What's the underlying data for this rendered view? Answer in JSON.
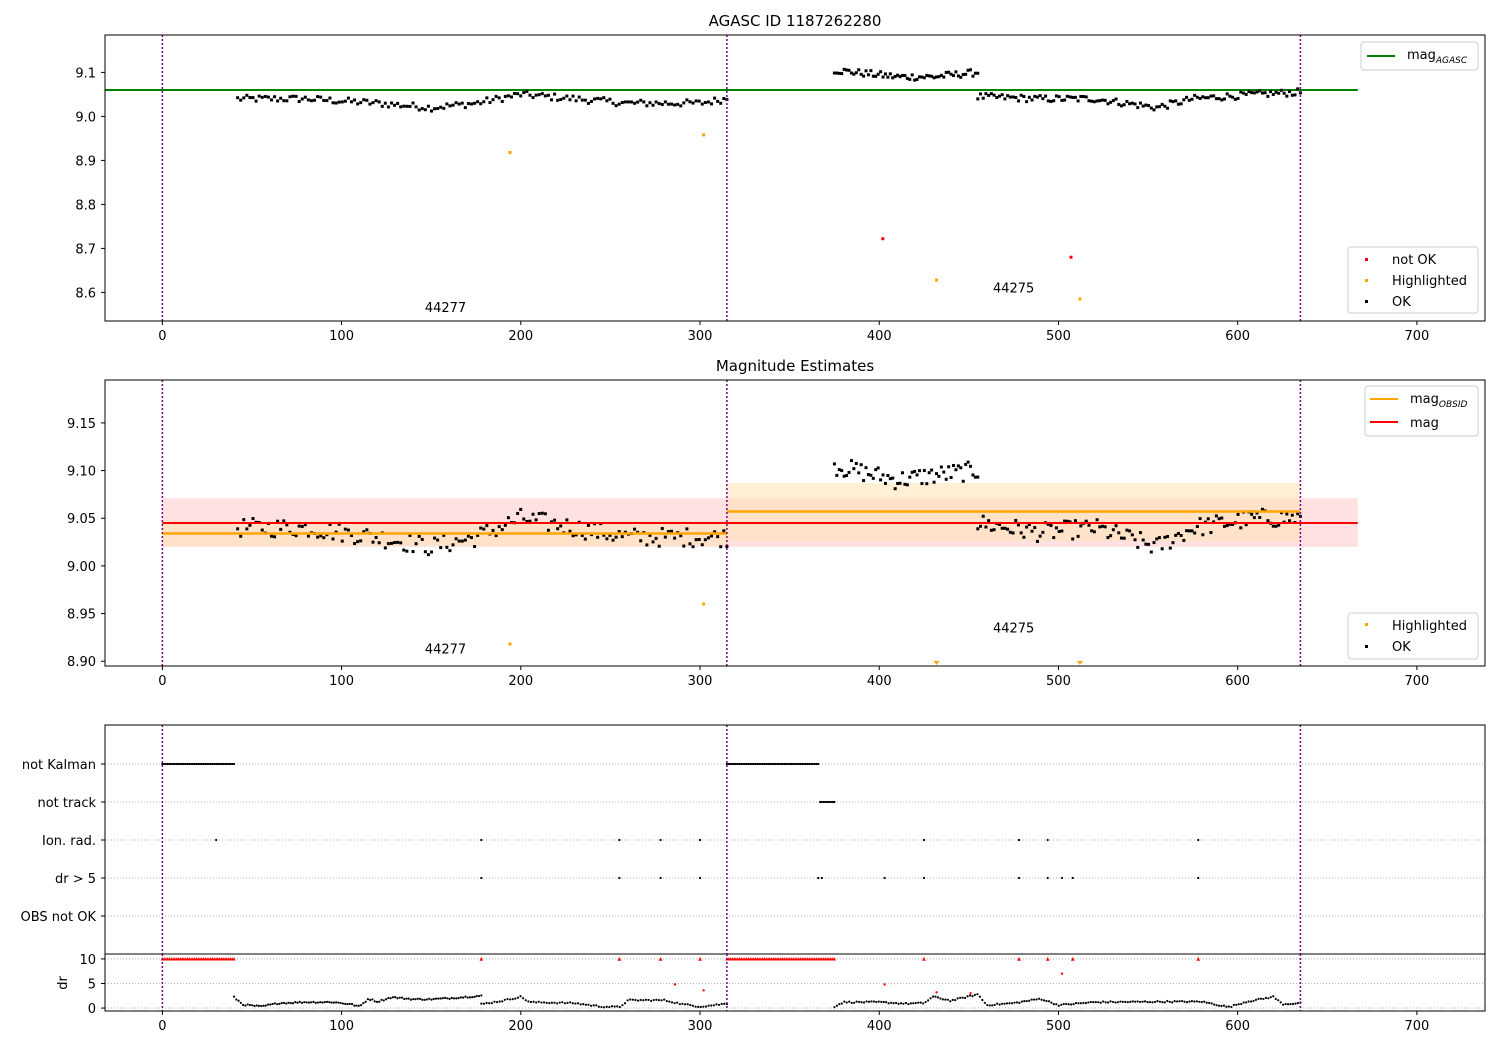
{
  "chart_data": [
    {
      "id": "top",
      "type": "scatter",
      "title": "AGASC ID 1187262280",
      "xlim": [
        -32,
        738
      ],
      "ylim": [
        8.535,
        9.185
      ],
      "xticks": [
        0,
        100,
        200,
        300,
        400,
        500,
        600,
        700
      ],
      "yticks": [
        8.6,
        8.7,
        8.8,
        8.9,
        9.0,
        9.1
      ],
      "yticklabels": [
        "8.6",
        "8.7",
        "8.8",
        "8.9",
        "9.0",
        "9.1"
      ],
      "vlines": [
        0,
        315,
        635
      ],
      "hline": {
        "name": "mag_AGASC",
        "y": 9.06,
        "x": [
          -32,
          667
        ],
        "color": "#008000"
      },
      "obsid_labels": [
        {
          "text": "44277",
          "x": 158,
          "y": 8.555
        },
        {
          "text": "44275",
          "x": 475,
          "y": 8.6
        }
      ],
      "series": [
        {
          "name": "not OK",
          "color": "#ff0000",
          "x": [
            402,
            507
          ],
          "y": [
            8.722,
            8.68
          ]
        },
        {
          "name": "Highlighted",
          "color": "#ffa500",
          "x": [
            194,
            302,
            432,
            512
          ],
          "y": [
            8.918,
            8.958,
            8.628,
            8.585
          ]
        },
        {
          "name": "OK",
          "color": "#000000",
          "segments": [
            {
              "x0": 42,
              "x1": 315,
              "yk": [
                [
                  42,
                  9.04
                ],
                [
                  80,
                  9.04
                ],
                [
                  120,
                  9.03
                ],
                [
                  150,
                  9.02
                ],
                [
                  175,
                  9.03
                ],
                [
                  200,
                  9.05
                ],
                [
                  230,
                  9.04
                ],
                [
                  260,
                  9.03
                ],
                [
                  300,
                  9.03
                ],
                [
                  315,
                  9.04
                ]
              ],
              "n": 160,
              "noise": 0.008
            },
            {
              "x0": 375,
              "x1": 455,
              "yk": [
                [
                  375,
                  9.105
                ],
                [
                  410,
                  9.09
                ],
                [
                  430,
                  9.09
                ],
                [
                  455,
                  9.1
                ]
              ],
              "n": 60,
              "noise": 0.008
            },
            {
              "x0": 455,
              "x1": 635,
              "yk": [
                [
                  455,
                  9.045
                ],
                [
                  490,
                  9.04
                ],
                [
                  520,
                  9.04
                ],
                [
                  555,
                  9.02
                ],
                [
                  575,
                  9.04
                ],
                [
                  610,
                  9.05
                ],
                [
                  635,
                  9.055
                ]
              ],
              "n": 120,
              "noise": 0.008
            }
          ]
        }
      ],
      "legend_upper": [
        "mag_AGASC"
      ],
      "legend_lower": [
        "not OK",
        "Highlighted",
        "OK"
      ]
    },
    {
      "id": "mid",
      "type": "scatter",
      "title": "Magnitude Estimates",
      "xlim": [
        -32,
        738
      ],
      "ylim": [
        8.895,
        9.195
      ],
      "xticks": [
        0,
        100,
        200,
        300,
        400,
        500,
        600,
        700
      ],
      "yticks": [
        8.9,
        8.95,
        9.0,
        9.05,
        9.1,
        9.15
      ],
      "yticklabels": [
        "8.90",
        "8.95",
        "9.00",
        "9.05",
        "9.10",
        "9.15"
      ],
      "vlines": [
        0,
        315,
        635
      ],
      "mag": {
        "y": 9.045,
        "band": [
          9.02,
          9.071
        ],
        "x": [
          0,
          667
        ],
        "color": "#ff0000"
      },
      "mag_obsid": [
        {
          "x": [
            0,
            315
          ],
          "y": 9.034,
          "band": [
            9.021,
            9.047
          ]
        },
        {
          "x": [
            315,
            635
          ],
          "y": 9.057,
          "band": [
            9.026,
            9.087
          ]
        }
      ],
      "obsid_labels": [
        {
          "text": "44277",
          "x": 158,
          "y": 8.908
        },
        {
          "text": "44275",
          "x": 475,
          "y": 8.93
        }
      ],
      "series": [
        {
          "name": "Highlighted",
          "color": "#ffa500",
          "x": [
            194,
            302
          ],
          "y": [
            8.918,
            8.96
          ],
          "off_axis_x": [
            432,
            512
          ]
        },
        {
          "name": "OK",
          "color": "#000000",
          "segments": [
            {
              "x0": 42,
              "x1": 315,
              "yk": [
                [
                  42,
                  9.04
                ],
                [
                  80,
                  9.04
                ],
                [
                  120,
                  9.03
                ],
                [
                  150,
                  9.02
                ],
                [
                  175,
                  9.03
                ],
                [
                  200,
                  9.05
                ],
                [
                  230,
                  9.04
                ],
                [
                  260,
                  9.03
                ],
                [
                  300,
                  9.03
                ],
                [
                  315,
                  9.03
                ]
              ],
              "n": 160,
              "noise": 0.01
            },
            {
              "x0": 375,
              "x1": 455,
              "yk": [
                [
                  375,
                  9.105
                ],
                [
                  410,
                  9.09
                ],
                [
                  430,
                  9.095
                ],
                [
                  455,
                  9.1
                ]
              ],
              "n": 60,
              "noise": 0.01
            },
            {
              "x0": 455,
              "x1": 635,
              "yk": [
                [
                  455,
                  9.045
                ],
                [
                  490,
                  9.035
                ],
                [
                  520,
                  9.04
                ],
                [
                  555,
                  9.02
                ],
                [
                  575,
                  9.04
                ],
                [
                  610,
                  9.05
                ],
                [
                  635,
                  9.05
                ]
              ],
              "n": 120,
              "noise": 0.01
            }
          ]
        }
      ],
      "legend_upper": [
        "mag_OBSID",
        "mag"
      ],
      "legend_lower": [
        "Highlighted",
        "OK"
      ]
    },
    {
      "id": "flags",
      "type": "scatter",
      "xlim": [
        -32,
        738
      ],
      "categories": [
        "not Kalman",
        "not track",
        "Ion. rad.",
        "dr > 5",
        "OBS not OK"
      ],
      "vlines": [
        0,
        315,
        635
      ],
      "flags": {
        "not Kalman": {
          "ranges": [
            [
              0,
              40
            ],
            [
              315,
              366
            ]
          ]
        },
        "not track": {
          "ranges": [
            [
              367,
              375
            ]
          ]
        },
        "Ion. rad.": {
          "points": [
            30,
            178,
            255,
            278,
            300,
            425,
            478,
            494,
            578
          ]
        },
        "dr > 5": {
          "points": [
            178,
            255,
            278,
            300,
            366,
            368,
            403,
            425,
            478,
            494,
            502,
            508,
            578
          ]
        },
        "OBS not OK": {
          "points": []
        }
      }
    },
    {
      "id": "dr",
      "type": "scatter",
      "ylabel": "dr",
      "xlim": [
        -32,
        738
      ],
      "ylim": [
        -0.6,
        11.0
      ],
      "xticks": [
        0,
        100,
        200,
        300,
        400,
        500,
        600,
        700
      ],
      "xticklabels": [
        "0",
        "100",
        "200",
        "300",
        "400",
        "500",
        "600",
        "700"
      ],
      "yticks": [
        0,
        5,
        10
      ],
      "yticklabels": [
        "0",
        "5",
        "10"
      ],
      "vlines": [
        0,
        315,
        635
      ],
      "clipped_red": {
        "ranges": [
          [
            0,
            40
          ],
          [
            315,
            375
          ]
        ],
        "points": [
          178,
          255,
          278,
          300,
          425,
          478,
          494,
          508,
          578
        ],
        "y": 10
      },
      "red_points": {
        "x": [
          286,
          403,
          432,
          502,
          302,
          451
        ],
        "y": [
          4.8,
          4.8,
          3.2,
          7.0,
          3.6,
          3.0
        ]
      },
      "series": [
        {
          "name": "dr",
          "color": "#000000",
          "segments": [
            {
              "x0": 40,
              "x1": 178,
              "yk": [
                [
                  40,
                  2.2
                ],
                [
                  45,
                  0.7
                ],
                [
                  55,
                  0.3
                ],
                [
                  65,
                  1.0
                ],
                [
                  80,
                  1.2
                ],
                [
                  95,
                  1.2
                ],
                [
                  105,
                  0.8
                ],
                [
                  110,
                  0.3
                ],
                [
                  115,
                  1.9
                ],
                [
                  120,
                  1.3
                ],
                [
                  128,
                  2.2
                ],
                [
                  140,
                  1.8
                ],
                [
                  150,
                  1.8
                ],
                [
                  160,
                  2.0
                ],
                [
                  178,
                  2.5
                ]
              ],
              "n": 110,
              "noise": 0.15
            },
            {
              "x0": 178,
              "x1": 315,
              "yk": [
                [
                  178,
                  0.8
                ],
                [
                  190,
                  1.5
                ],
                [
                  200,
                  2.3
                ],
                [
                  205,
                  1.2
                ],
                [
                  230,
                  1.0
                ],
                [
                  245,
                  0.3
                ],
                [
                  255,
                  0.2
                ],
                [
                  260,
                  1.6
                ],
                [
                  280,
                  1.6
                ],
                [
                  290,
                  0.8
                ],
                [
                  300,
                  0.3
                ],
                [
                  315,
                  0.9
                ]
              ],
              "n": 95,
              "noise": 0.15
            },
            {
              "x0": 375,
              "x1": 635,
              "yk": [
                [
                  375,
                  0.3
                ],
                [
                  380,
                  1.2
                ],
                [
                  400,
                  1.2
                ],
                [
                  415,
                  0.9
                ],
                [
                  425,
                  1.0
                ],
                [
                  430,
                  2.3
                ],
                [
                  440,
                  1.5
                ],
                [
                  455,
                  2.8
                ],
                [
                  460,
                  0.6
                ],
                [
                  475,
                  1.0
                ],
                [
                  490,
                  1.9
                ],
                [
                  500,
                  0.6
                ],
                [
                  520,
                  1.2
                ],
                [
                  560,
                  1.3
                ],
                [
                  580,
                  1.3
                ],
                [
                  595,
                  0.2
                ],
                [
                  605,
                  1.3
                ],
                [
                  620,
                  2.3
                ],
                [
                  625,
                  0.8
                ],
                [
                  635,
                  1.0
                ]
              ],
              "n": 190,
              "noise": 0.15
            }
          ]
        }
      ]
    }
  ],
  "legend": {
    "mag_agasc_main": "mag",
    "mag_agasc_sub": "AGASC",
    "mag_obsid_main": "mag",
    "mag_obsid_sub": "OBSID",
    "mag": "mag",
    "not_ok": "not OK",
    "highlighted": "Highlighted",
    "ok": "OK"
  },
  "colors": {
    "agasc_line": "#008000",
    "mag_line": "#ff0000",
    "mag_band": "#ffc8c8",
    "obsid_line": "#ffa500",
    "obsid_band": "#ffe3b3",
    "vline": "#800080",
    "grid": "#b0b0b0",
    "ok": "#000000",
    "highlighted": "#ffa500",
    "not_ok": "#ff0000"
  }
}
